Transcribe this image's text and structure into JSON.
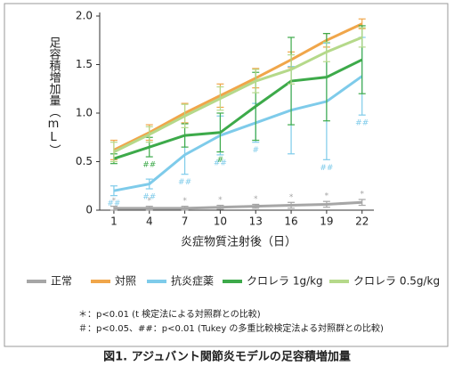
{
  "chart_data": {
    "type": "line",
    "title": "図1. アジュバント関節炎モデルの足容積増加量",
    "x_label": "炎症物質注射後（日）",
    "y_label": "足容積増加量（mL）",
    "x": [
      1,
      4,
      7,
      10,
      13,
      16,
      19,
      22
    ],
    "xlim": [
      -0.2,
      23
    ],
    "xticks": [
      1,
      4,
      7,
      10,
      13,
      16,
      19,
      22
    ],
    "ylim": [
      0,
      2
    ],
    "yticks": [
      0,
      0.5,
      {
        "value": 1,
        "label": "1.0"
      },
      1.5,
      {
        "value": 2,
        "label": "2.0"
      }
    ],
    "grid": false,
    "series": [
      {
        "name": "正常",
        "color": "#a6a6a6",
        "values": [
          0.02,
          0.02,
          0.02,
          0.03,
          0.04,
          0.05,
          0.06,
          0.08
        ],
        "errors": [
          0.02,
          0.02,
          0.02,
          0.02,
          0.02,
          0.03,
          0.03,
          0.03
        ],
        "significance": [
          "*",
          "*",
          "*",
          "*",
          "*",
          "*",
          "*",
          "*"
        ]
      },
      {
        "name": "対照",
        "color": "#f0a64a",
        "values": [
          0.62,
          0.8,
          1.0,
          1.18,
          1.36,
          1.55,
          1.75,
          1.92
        ],
        "errors": [
          0.1,
          0.08,
          0.1,
          0.12,
          0.1,
          0.08,
          0.07,
          0.05
        ],
        "significance": [
          null,
          null,
          null,
          null,
          null,
          null,
          null,
          null
        ]
      },
      {
        "name": "抗炎症薬",
        "color": "#7ecbea",
        "values": [
          0.2,
          0.27,
          0.57,
          0.77,
          0.9,
          1.03,
          1.12,
          1.38
        ],
        "errors": [
          0.05,
          0.05,
          0.2,
          0.2,
          0.2,
          0.45,
          0.6,
          0.4
        ],
        "significance": [
          "##",
          "##",
          "##",
          "##",
          "#",
          null,
          "##",
          "##"
        ]
      },
      {
        "name": "クロレラ 1g/kg",
        "color": "#3daa4a",
        "values": [
          0.53,
          0.65,
          0.77,
          0.8,
          1.07,
          1.33,
          1.37,
          1.55
        ],
        "errors": [
          0.05,
          0.1,
          0.12,
          0.2,
          0.35,
          0.45,
          0.45,
          0.35
        ],
        "significance": [
          null,
          "##",
          null,
          "#",
          null,
          null,
          null,
          null
        ]
      },
      {
        "name": "クロレラ 0.5g/kg",
        "color": "#b5d98a",
        "values": [
          0.6,
          0.78,
          0.97,
          1.15,
          1.33,
          1.45,
          1.63,
          1.78
        ],
        "errors": [
          0.1,
          0.08,
          0.12,
          0.12,
          0.12,
          0.15,
          0.1,
          0.1
        ],
        "significance": [
          null,
          null,
          null,
          null,
          null,
          null,
          null,
          null
        ]
      }
    ],
    "legend": "bottom",
    "notes": [
      "＊：p<0.01 (t 検定法による対照群との比較)",
      "＃：p<0.05、##：p<0.01 (Tukey の多重比較検定法よる対照群との比較)"
    ]
  }
}
